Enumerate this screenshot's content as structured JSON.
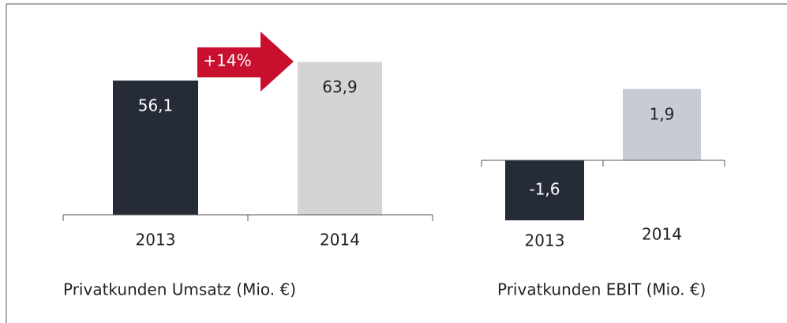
{
  "chart_data": [
    {
      "type": "bar",
      "title": "Privatkunden Umsatz (Mio. €)",
      "categories": [
        "2013",
        "2014"
      ],
      "values": [
        56.1,
        63.9
      ],
      "value_labels": [
        "56,1",
        "63,9"
      ],
      "colors": [
        "#262b38",
        "#d4d4d4"
      ],
      "annotation": "+14%",
      "annotation_color": "#c8102e"
    },
    {
      "type": "bar",
      "title": "Privatkunden EBIT (Mio. €)",
      "categories": [
        "2013",
        "2014"
      ],
      "values": [
        -1.6,
        1.9
      ],
      "value_labels": [
        "-1,6",
        "1,9"
      ],
      "colors": [
        "#262b38",
        "#c6cbd4"
      ]
    }
  ]
}
